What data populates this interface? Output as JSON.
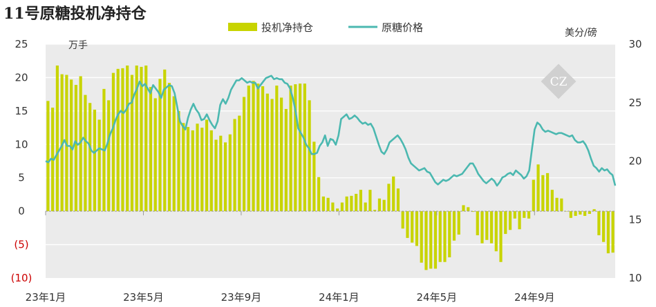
{
  "chart_data": {
    "type": "bar-line",
    "title": "11号原糖投机净持仓",
    "legend_position": "top",
    "grid": "horizontal",
    "series": [
      {
        "name": "投机净持仓",
        "kind": "bar",
        "axis": "left",
        "color": "#c8d400",
        "values": [
          16.5,
          15.5,
          21.8,
          20.5,
          20.4,
          19.7,
          18.9,
          20.2,
          17.4,
          16.2,
          15.2,
          13.7,
          18.3,
          16.6,
          20.7,
          21.3,
          21.4,
          21.8,
          20.4,
          21.8,
          21.6,
          21.8,
          18.6,
          16.9,
          19.8,
          21.2,
          19.2,
          17.2,
          15.0,
          13.2,
          12.6,
          12.1,
          13.1,
          12.5,
          13.7,
          12.1,
          10.7,
          11.3,
          10.3,
          11.5,
          13.8,
          14.3,
          17.1,
          18.8,
          19.5,
          19.1,
          18.7,
          17.6,
          16.8,
          18.8,
          17.0,
          15.3,
          18.8,
          19.0,
          19.1,
          19.1,
          16.6,
          10.4,
          5.1,
          2.2,
          2.0,
          1.3,
          0.4,
          1.3,
          2.2,
          2.3,
          2.6,
          3.2,
          1.3,
          3.2,
          0.2,
          1.9,
          1.7,
          4.1,
          5.2,
          3.4,
          -2.6,
          -4.0,
          -4.7,
          -5.2,
          -7.7,
          -8.8,
          -8.6,
          -8.6,
          -7.6,
          -7.6,
          -6.9,
          -4.4,
          -3.5,
          0.9,
          0.6,
          -0.1,
          -3.6,
          -4.8,
          -4.3,
          -4.8,
          -6.0,
          -7.6,
          -3.4,
          -2.8,
          -1.1,
          -2.7,
          -1.0,
          -1.1,
          4.7,
          7.0,
          5.4,
          5.7,
          3.2,
          2.0,
          1.9,
          0.0,
          -1.0,
          -0.7,
          -0.5,
          -0.7,
          -0.4,
          0.3,
          -3.6,
          -4.6,
          -6.3,
          -6.2
        ]
      },
      {
        "name": "原糖价格",
        "kind": "line",
        "axis": "right",
        "color": "#4bb8b0",
        "values": [
          20.0,
          19.9,
          20.2,
          20.1,
          20.5,
          20.9,
          21.3,
          21.8,
          21.3,
          21.3,
          21.0,
          21.7,
          21.4,
          21.6,
          22.0,
          21.7,
          21.5,
          20.9,
          20.7,
          20.9,
          21.1,
          21.0,
          20.9,
          21.5,
          22.3,
          22.8,
          23.5,
          24.0,
          24.3,
          24.1,
          24.4,
          24.9,
          25.0,
          25.7,
          26.2,
          26.8,
          26.4,
          26.6,
          26.2,
          25.8,
          26.5,
          26.2,
          25.9,
          25.4,
          26.1,
          26.3,
          26.5,
          26.4,
          25.8,
          24.6,
          23.4,
          23.0,
          22.7,
          23.7,
          24.4,
          24.9,
          24.4,
          24.1,
          23.5,
          23.6,
          24.0,
          23.5,
          23.1,
          22.8,
          23.4,
          24.8,
          25.3,
          24.9,
          25.4,
          26.1,
          26.5,
          26.9,
          26.9,
          27.1,
          26.9,
          26.7,
          26.8,
          26.7,
          26.7,
          26.2,
          26.5,
          26.8,
          27.1,
          27.2,
          27.3,
          27.0,
          27.1,
          27.0,
          27.0,
          26.7,
          26.6,
          26.2,
          25.4,
          24.3,
          22.8,
          22.4,
          22.0,
          21.4,
          21.1,
          20.6,
          20.6,
          20.7,
          21.3,
          21.6,
          22.2,
          21.3,
          21.9,
          21.8,
          21.4,
          22.2,
          23.6,
          23.8,
          24.0,
          23.6,
          23.7,
          23.9,
          23.7,
          23.4,
          23.2,
          23.3,
          23.1,
          23.2,
          22.8,
          22.1,
          21.4,
          20.8,
          20.6,
          21.0,
          21.6,
          21.8,
          22.0,
          22.2,
          21.9,
          21.5,
          21.0,
          20.3,
          19.8,
          19.6,
          19.4,
          19.2,
          19.3,
          19.4,
          19.1,
          19.0,
          18.6,
          18.2,
          18.0,
          18.2,
          18.4,
          18.3,
          18.4,
          18.6,
          18.8,
          18.7,
          18.8,
          18.9,
          19.2,
          19.5,
          19.8,
          19.8,
          19.4,
          18.9,
          18.6,
          18.3,
          18.1,
          18.3,
          18.5,
          18.3,
          17.9,
          18.2,
          18.6,
          18.7,
          18.9,
          19.0,
          18.8,
          19.2,
          19.0,
          18.8,
          18.5,
          18.7,
          19.2,
          21.0,
          22.7,
          23.3,
          23.1,
          22.7,
          22.5,
          22.6,
          22.5,
          22.4,
          22.3,
          22.4,
          22.4,
          22.3,
          22.2,
          22.1,
          22.2,
          21.8,
          21.6,
          21.6,
          21.7,
          21.4,
          20.9,
          20.2,
          19.6,
          19.4,
          19.1,
          19.4,
          19.2,
          19.3,
          19.0,
          18.8,
          17.9
        ]
      }
    ],
    "x_tick_labels": [
      "23年1月",
      "23年5月",
      "23年9月",
      "24年1月",
      "24年5月",
      "24年9月"
    ],
    "left_axis": {
      "unit": "万手",
      "ylim": [
        -10,
        25
      ],
      "ticks": [
        25,
        20,
        15,
        10,
        5,
        0,
        -5,
        -10
      ],
      "tick_labels": [
        "25",
        "20",
        "15",
        "10",
        "5",
        "0",
        "(5)",
        "(10)"
      ]
    },
    "right_axis": {
      "unit": "美分/磅",
      "ylim": [
        10,
        30
      ],
      "ticks": [
        30,
        25,
        20,
        15,
        10
      ],
      "tick_labels": [
        "30",
        "25",
        "20",
        "15",
        "10"
      ]
    }
  }
}
